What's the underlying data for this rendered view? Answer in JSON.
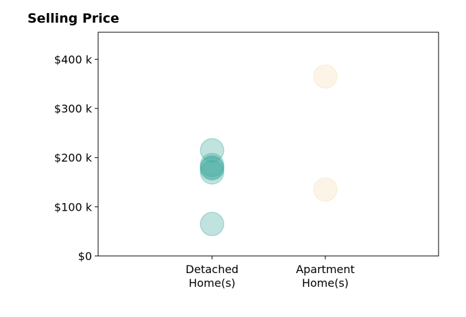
{
  "chart_data": {
    "type": "scatter",
    "title": "Selling Price",
    "xlabel": "",
    "ylabel": "",
    "categories": [
      "Detached\nHome(s)",
      "Apartment\nHome(s)"
    ],
    "ylim": [
      0,
      455000
    ],
    "yticks": [
      0,
      100000,
      200000,
      300000,
      400000
    ],
    "ytick_labels": [
      "$0",
      "$100 k",
      "$200 k",
      "$300 k",
      "$400 k"
    ],
    "grid": false,
    "legend": "none",
    "series": [
      {
        "category": "Detached\nHome(s)",
        "color": "#3aa79b",
        "values": [
          215000,
          185000,
          180000,
          178000,
          170000,
          65000
        ]
      },
      {
        "category": "Apartment\nHome(s)",
        "color": "#f5deb0",
        "values": [
          365000,
          135000
        ]
      }
    ]
  }
}
